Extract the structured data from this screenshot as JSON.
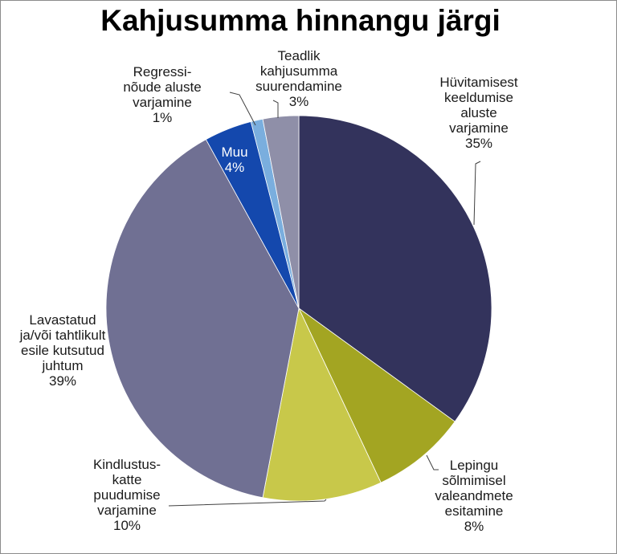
{
  "chart_data": {
    "type": "pie",
    "title": "Kahjusumma hinnangu järgi",
    "slices": [
      {
        "name": "Hüvitamisest keeldumise aluste varjamine",
        "value": 35,
        "label": "35%",
        "color": "#33335c"
      },
      {
        "name": "Lepingu sõlmimisel valeandmete esitamine",
        "value": 8,
        "label": "8%",
        "color": "#a3a522"
      },
      {
        "name": "Kindlustus-katte puudumise varjamine",
        "value": 10,
        "label": "10%",
        "color": "#c8c84a"
      },
      {
        "name": "Lavastatud ja/või tahtlikult esile kutsutud juhtum",
        "value": 39,
        "label": "39%",
        "color": "#707093"
      },
      {
        "name": "Muu",
        "value": 4,
        "label": "4%",
        "color": "#1448ad"
      },
      {
        "name": "Regressi-nõude aluste varjamine",
        "value": 1,
        "label": "1%",
        "color": "#7aaede"
      },
      {
        "name": "Teadlik kahjusumma suurendamine",
        "value": 3,
        "label": "3%",
        "color": "#8f8fa8"
      }
    ],
    "label_lines": [
      [
        "Hüvitamisest",
        "keeldumise",
        "aluste",
        "varjamine",
        "35%"
      ],
      [
        "Lepingu",
        "sõlmimisel",
        "valeandmete",
        "esitamine",
        "8%"
      ],
      [
        "Kindlustus-",
        "katte",
        "puudumise",
        "varjamine",
        "10%"
      ],
      [
        "Lavastatud",
        "ja/või tahtlikult",
        "esile kutsutud",
        "juhtum",
        "39%"
      ],
      [
        "Muu",
        "4%"
      ],
      [
        "Regressi-",
        "nõude aluste",
        "varjamine",
        "1%"
      ],
      [
        "Teadlik",
        "kahjusumma",
        "suurendamine",
        "3%"
      ]
    ],
    "start_angle_deg": 0,
    "direction": "clockwise"
  }
}
